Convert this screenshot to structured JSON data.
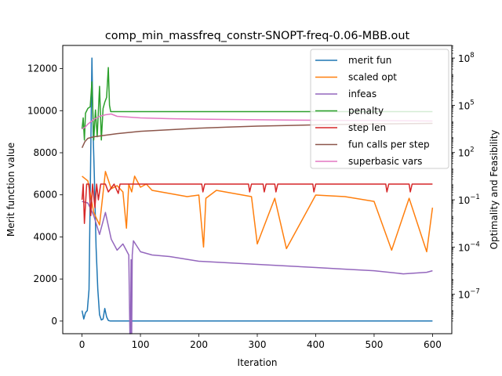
{
  "chart_data": {
    "type": "line",
    "title": "comp_min_massfreq_constr-SNOPT-freq-0.06-MBB.out",
    "xlabel": "Iteration",
    "ylabel_left": "Merit function value",
    "ylabel_right": "Optimality and Feasibility",
    "xlim": [
      -33,
      633
    ],
    "ylim_left": [
      -600,
      13100
    ],
    "ylim_right_log10": [
      -9.5,
      8.8
    ],
    "right_axis_scale": "log",
    "x_ticks": [
      0,
      100,
      200,
      300,
      400,
      500,
      600
    ],
    "x_tick_labels": [
      "0",
      "100",
      "200",
      "300",
      "400",
      "500",
      "600"
    ],
    "y_left_ticks": [
      0,
      2000,
      4000,
      6000,
      8000,
      10000,
      12000
    ],
    "y_left_tick_labels": [
      "0",
      "2000",
      "4000",
      "6000",
      "8000",
      "10000",
      "12000"
    ],
    "y_right_ticks_log10": [
      -7,
      -4,
      -1,
      2,
      5,
      8
    ],
    "y_right_tick_labels": [
      "10",
      "10",
      "10",
      "10",
      "10",
      "10"
    ],
    "y_right_tick_exponents": [
      "−7",
      "−4",
      "−1",
      "2",
      "5",
      "8"
    ],
    "legend_placement": "top-right",
    "grid": false,
    "series": [
      {
        "name": "merit fun",
        "axis": "left",
        "color": "#1f77b4",
        "x": [
          0,
          3,
          6,
          9,
          12,
          15,
          17,
          19,
          21,
          24,
          27,
          30,
          33,
          36,
          39,
          42,
          45,
          48,
          60,
          100,
          200,
          300,
          400,
          500,
          600
        ],
        "y": [
          500,
          100,
          400,
          500,
          1500,
          8000,
          12500,
          9000,
          7000,
          3500,
          1500,
          300,
          50,
          100,
          600,
          200,
          30,
          5,
          5,
          5,
          5,
          5,
          5,
          5,
          5
        ]
      },
      {
        "name": "scaled opt",
        "axis": "right",
        "color": "#ff7f0e",
        "x": [
          0,
          10,
          20,
          30,
          40,
          50,
          60,
          70,
          76,
          80,
          85,
          90,
          100,
          110,
          120,
          150,
          180,
          200,
          208,
          212,
          230,
          260,
          290,
          300,
          330,
          350,
          400,
          450,
          500,
          530,
          560,
          590,
          600
        ],
        "y_log10": [
          0.5,
          0.2,
          -1.8,
          -2.6,
          0.8,
          -0.3,
          -0.1,
          -0.5,
          -2.8,
          0.0,
          -0.5,
          0.5,
          -0.2,
          0.0,
          -0.4,
          -0.6,
          -0.8,
          -0.7,
          -4.0,
          -0.9,
          -0.4,
          -0.6,
          -0.8,
          -3.8,
          -0.9,
          -4.1,
          -0.7,
          -0.8,
          -1.1,
          -4.2,
          -0.9,
          -4.3,
          -1.5
        ]
      },
      {
        "name": "infeas",
        "axis": "right",
        "color": "#9467bd",
        "x": [
          0,
          10,
          20,
          30,
          40,
          50,
          60,
          70,
          80,
          82,
          83,
          84,
          85,
          86,
          88,
          100,
          120,
          150,
          200,
          250,
          300,
          350,
          400,
          450,
          500,
          550,
          590,
          600
        ],
        "y_log10": [
          -1.1,
          -1.2,
          -2.0,
          -3.2,
          -1.8,
          -3.5,
          -4.2,
          -3.8,
          -4.5,
          -9.5,
          -9.5,
          -4.8,
          -9.5,
          -4.5,
          -3.6,
          -4.3,
          -4.5,
          -4.6,
          -4.9,
          -5.0,
          -5.1,
          -5.2,
          -5.3,
          -5.4,
          -5.5,
          -5.7,
          -5.6,
          -5.5
        ]
      },
      {
        "name": "penalty",
        "axis": "right",
        "color": "#2ca02c",
        "x": [
          0,
          2,
          4,
          6,
          10,
          14,
          17,
          20,
          23,
          26,
          30,
          33,
          36,
          39,
          42,
          45,
          47,
          49,
          51,
          100,
          200,
          300,
          400,
          500,
          600
        ],
        "y_log10": [
          3.5,
          4.2,
          2.8,
          4.5,
          4.8,
          4.9,
          6.5,
          2.8,
          4.7,
          3.0,
          6.2,
          2.8,
          4.8,
          5.2,
          5.5,
          7.4,
          5.0,
          4.6,
          4.6,
          4.6,
          4.6,
          4.6,
          4.6,
          4.6,
          4.6
        ]
      },
      {
        "name": "step len",
        "axis": "right",
        "color": "#d62728",
        "x": [
          0,
          2,
          4,
          8,
          12,
          15,
          18,
          22,
          25,
          28,
          32,
          35,
          40,
          45,
          55,
          62,
          65,
          70,
          100,
          205,
          207,
          210,
          285,
          287,
          290,
          310,
          312,
          315,
          330,
          332,
          335,
          395,
          397,
          400,
          520,
          522,
          525,
          560,
          562,
          565,
          600
        ],
        "y_log10": [
          -1.0,
          0.0,
          -2.5,
          0.0,
          0.0,
          -2.0,
          0.0,
          -1.5,
          0.0,
          -1.0,
          0.0,
          0.0,
          0.0,
          -0.5,
          0.0,
          -0.6,
          0.0,
          0.0,
          0.0,
          0.0,
          -0.5,
          0.0,
          0.0,
          -0.5,
          0.0,
          0.0,
          -0.5,
          0.0,
          0.0,
          -0.5,
          0.0,
          0.0,
          -0.5,
          0.0,
          0.0,
          -0.5,
          0.0,
          0.0,
          -0.5,
          0.0,
          0.0
        ]
      },
      {
        "name": "fun calls per step",
        "axis": "right",
        "color": "#8c564b",
        "x": [
          0,
          5,
          10,
          20,
          40,
          60,
          100,
          150,
          200,
          250,
          300,
          350,
          400,
          450,
          500,
          550,
          600
        ],
        "y_log10": [
          2.3,
          2.7,
          2.9,
          3.0,
          3.1,
          3.2,
          3.35,
          3.45,
          3.55,
          3.62,
          3.68,
          3.72,
          3.76,
          3.79,
          3.81,
          3.83,
          3.85
        ]
      },
      {
        "name": "superbasic vars",
        "axis": "right",
        "color": "#e377c2",
        "x": [
          0,
          5,
          10,
          20,
          30,
          40,
          50,
          60,
          80,
          100,
          150,
          200,
          250,
          300,
          350,
          400,
          450,
          500,
          550,
          600
        ],
        "y_log10": [
          3.5,
          3.6,
          3.8,
          4.1,
          4.3,
          4.4,
          4.45,
          4.3,
          4.25,
          4.2,
          4.15,
          4.12,
          4.1,
          4.08,
          4.06,
          4.05,
          4.04,
          4.03,
          4.02,
          4.0
        ]
      }
    ]
  }
}
